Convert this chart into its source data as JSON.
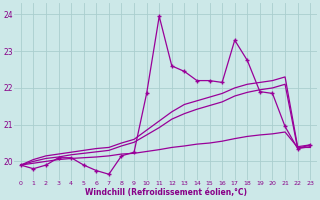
{
  "xlabel": "Windchill (Refroidissement éolien,°C)",
  "bg_color": "#cce8e8",
  "grid_color": "#aacece",
  "line_color": "#990099",
  "xlim": [
    -0.5,
    23.5
  ],
  "ylim": [
    19.5,
    24.3
  ],
  "yticks": [
    20,
    21,
    22,
    23,
    24
  ],
  "hours": [
    0,
    1,
    2,
    3,
    4,
    5,
    6,
    7,
    8,
    9,
    10,
    11,
    12,
    13,
    14,
    15,
    16,
    17,
    18,
    19,
    20,
    21,
    22,
    23
  ],
  "temp_main": [
    19.9,
    19.8,
    19.9,
    20.1,
    20.1,
    19.9,
    19.75,
    19.65,
    20.15,
    20.25,
    21.85,
    23.95,
    22.6,
    22.45,
    22.2,
    22.2,
    22.15,
    23.3,
    22.75,
    21.9,
    21.85,
    20.95,
    20.35,
    20.45
  ],
  "trend_upper": [
    19.9,
    20.05,
    20.15,
    20.2,
    20.25,
    20.3,
    20.35,
    20.38,
    20.5,
    20.6,
    20.85,
    21.1,
    21.35,
    21.55,
    21.65,
    21.75,
    21.85,
    22.0,
    22.1,
    22.15,
    22.2,
    22.3,
    20.4,
    20.45
  ],
  "trend_mid": [
    19.9,
    20.0,
    20.08,
    20.12,
    20.18,
    20.22,
    20.26,
    20.3,
    20.42,
    20.52,
    20.72,
    20.92,
    21.15,
    21.3,
    21.42,
    21.52,
    21.62,
    21.78,
    21.88,
    21.95,
    22.0,
    22.1,
    20.35,
    20.4
  ],
  "trend_flat": [
    19.9,
    19.95,
    20.0,
    20.05,
    20.08,
    20.1,
    20.12,
    20.15,
    20.2,
    20.22,
    20.27,
    20.32,
    20.38,
    20.42,
    20.47,
    20.5,
    20.55,
    20.62,
    20.68,
    20.72,
    20.75,
    20.8,
    20.38,
    20.38
  ]
}
